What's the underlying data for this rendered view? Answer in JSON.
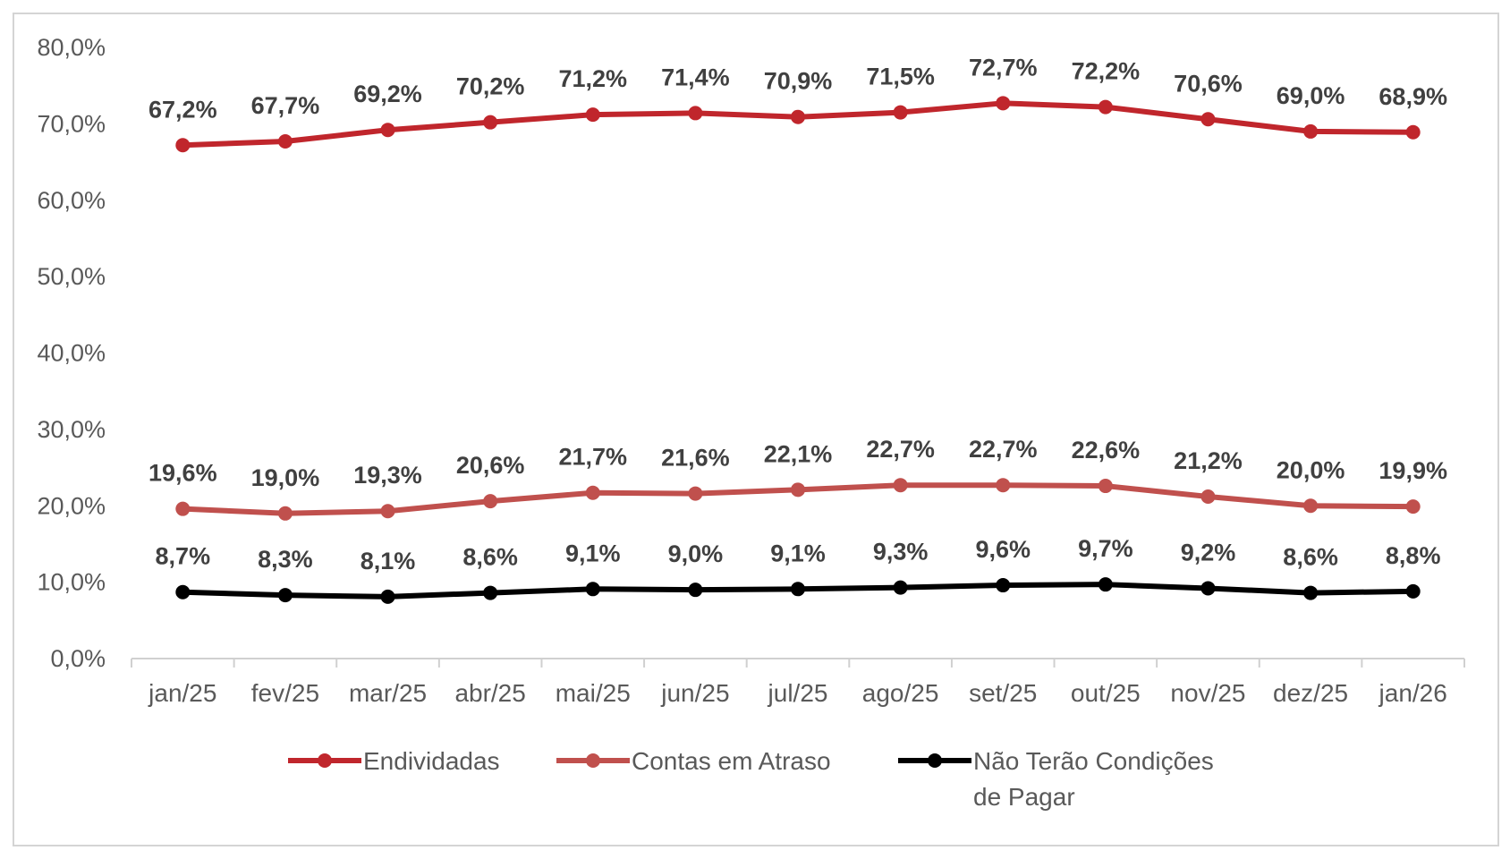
{
  "chart_data": {
    "type": "line",
    "categories": [
      "jan/25",
      "fev/25",
      "mar/25",
      "abr/25",
      "mai/25",
      "jun/25",
      "jul/25",
      "ago/25",
      "set/25",
      "out/25",
      "nov/25",
      "dez/25",
      "jan/26"
    ],
    "ylim": [
      0,
      80
    ],
    "yticks": [
      "0,0%",
      "10,0%",
      "20,0%",
      "30,0%",
      "40,0%",
      "50,0%",
      "60,0%",
      "70,0%",
      "80,0%"
    ],
    "grid": false,
    "legend_position": "bottom",
    "series": [
      {
        "name": "Endividadas",
        "color": "#c0262c",
        "values": [
          67.2,
          67.7,
          69.2,
          70.2,
          71.2,
          71.4,
          70.9,
          71.5,
          72.7,
          72.2,
          70.6,
          69.0,
          68.9
        ],
        "labels": [
          "67,2%",
          "67,7%",
          "69,2%",
          "70,2%",
          "71,2%",
          "71,4%",
          "70,9%",
          "71,5%",
          "72,7%",
          "72,2%",
          "70,6%",
          "69,0%",
          "68,9%"
        ]
      },
      {
        "name": "Contas em Atraso",
        "color": "#c0504d",
        "values": [
          19.6,
          19.0,
          19.3,
          20.6,
          21.7,
          21.6,
          22.1,
          22.7,
          22.7,
          22.6,
          21.2,
          20.0,
          19.9
        ],
        "labels": [
          "19,6%",
          "19,0%",
          "19,3%",
          "20,6%",
          "21,7%",
          "21,6%",
          "22,1%",
          "22,7%",
          "22,7%",
          "22,6%",
          "21,2%",
          "20,0%",
          "19,9%"
        ]
      },
      {
        "name_lines": [
          "Não Terão Condições",
          "de Pagar"
        ],
        "color": "#000000",
        "values": [
          8.7,
          8.3,
          8.1,
          8.6,
          9.1,
          9.0,
          9.1,
          9.3,
          9.6,
          9.7,
          9.2,
          8.6,
          8.8
        ],
        "labels": [
          "8,7%",
          "8,3%",
          "8,1%",
          "8,6%",
          "9,1%",
          "9,0%",
          "9,1%",
          "9,3%",
          "9,6%",
          "9,7%",
          "9,2%",
          "8,6%",
          "8,8%"
        ]
      }
    ]
  }
}
